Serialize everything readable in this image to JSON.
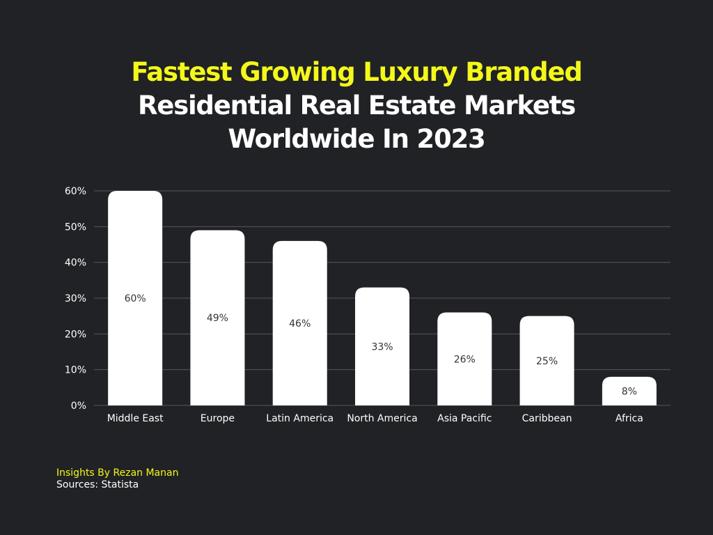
{
  "title": {
    "line1": "Fastest Growing Luxury Branded",
    "line2": "Residential Real Estate Markets",
    "line3": "Worldwide In 2023"
  },
  "colors": {
    "background": "#212225",
    "accent": "#f4f81a",
    "bar": "#ffffff",
    "grid": "#55575b",
    "axis_text": "#ffffff",
    "label_text": "#333333"
  },
  "chart_data": {
    "type": "bar",
    "title": "Fastest Growing Luxury Branded Residential Real Estate Markets Worldwide In 2023",
    "xlabel": "",
    "ylabel": "",
    "categories": [
      "Middle East",
      "Europe",
      "Latin America",
      "North America",
      "Asia Pacific",
      "Caribbean",
      "Africa"
    ],
    "values": [
      60,
      49,
      46,
      33,
      26,
      25,
      8
    ],
    "data_labels": [
      "60%",
      "49%",
      "46%",
      "33%",
      "26%",
      "25%",
      "8%"
    ],
    "ylim": [
      0,
      60
    ],
    "yticks": [
      0,
      10,
      20,
      30,
      40,
      50,
      60
    ],
    "ytick_labels": [
      "0%",
      "10%",
      "20%",
      "30%",
      "40%",
      "50%",
      "60%"
    ],
    "grid": true,
    "legend": "none"
  },
  "footer": {
    "author": "Insights By Rezan Manan",
    "source": "Sources: Statista"
  }
}
